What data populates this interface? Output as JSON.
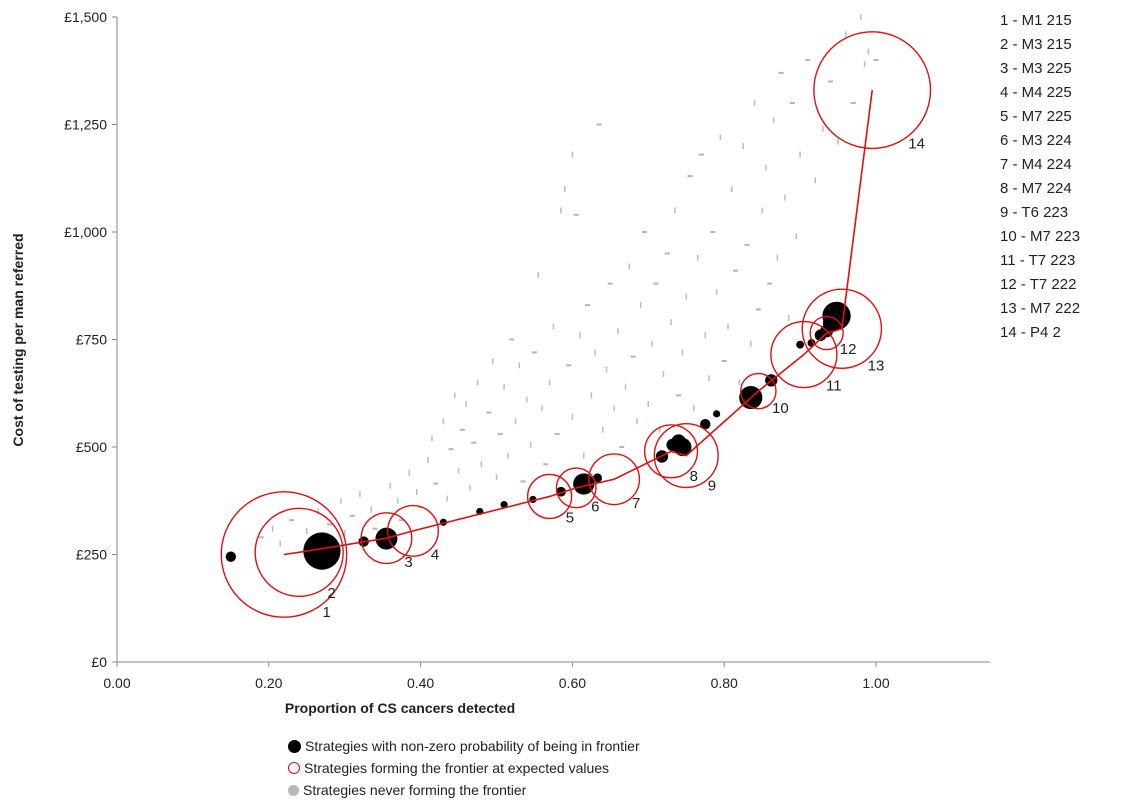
{
  "chart_data": {
    "type": "scatter",
    "xlabel": "Proportion of CS cancers detected",
    "ylabel": "Cost of testing per man referred",
    "xlim": [
      0,
      1.12
    ],
    "ylim": [
      0,
      1500
    ],
    "x_ticks": [
      "0.00",
      "0.20",
      "0.40",
      "0.60",
      "0.80",
      "1.00"
    ],
    "x_tick_values": [
      0,
      0.2,
      0.4,
      0.6,
      0.8,
      1.0
    ],
    "y_ticks": [
      "£0",
      "£250",
      "£500",
      "£750",
      "£1,000",
      "£1,250",
      "£1,500"
    ],
    "y_tick_values": [
      0,
      250,
      500,
      750,
      1000,
      1250,
      1500
    ],
    "grid": false,
    "legend_position": "bottom",
    "legend": [
      {
        "label": "Strategies with non-zero probability of being in frontier",
        "symbol": "black-dot"
      },
      {
        "label": "Strategies forming the frontier at expected values",
        "symbol": "red-circle"
      },
      {
        "label": "Strategies never forming the frontier",
        "symbol": "grey-dot"
      }
    ],
    "frontier_line_color": "#e01010",
    "frontier": [
      {
        "id": "1",
        "name": "M1 215",
        "x": 0.22,
        "y": 250,
        "circle_size": 5.7
      },
      {
        "id": "2",
        "name": "M3 215",
        "x": 0.24,
        "y": 255,
        "circle_size": 4.0
      },
      {
        "id": "3",
        "name": "M3 225",
        "x": 0.355,
        "y": 288,
        "circle_size": 2.3
      },
      {
        "id": "4",
        "name": "M4 225",
        "x": 0.39,
        "y": 305,
        "circle_size": 2.3
      },
      {
        "id": "5",
        "name": "M7 225",
        "x": 0.57,
        "y": 385,
        "circle_size": 2.0
      },
      {
        "id": "6",
        "name": "M3 224",
        "x": 0.605,
        "y": 405,
        "circle_size": 1.8
      },
      {
        "id": "7",
        "name": "M4 224",
        "x": 0.655,
        "y": 425,
        "circle_size": 2.3
      },
      {
        "id": "8",
        "name": "M7 224",
        "x": 0.73,
        "y": 490,
        "circle_size": 2.4
      },
      {
        "id": "9",
        "name": "T6 223",
        "x": 0.75,
        "y": 480,
        "circle_size": 2.9
      },
      {
        "id": "10",
        "name": "M7 223",
        "x": 0.845,
        "y": 630,
        "circle_size": 1.6
      },
      {
        "id": "11",
        "name": "T7 223",
        "x": 0.905,
        "y": 715,
        "circle_size": 3.0
      },
      {
        "id": "12",
        "name": "T7 222",
        "x": 0.935,
        "y": 765,
        "circle_size": 1.5
      },
      {
        "id": "13",
        "name": "M7 222",
        "x": 0.955,
        "y": 775,
        "circle_size": 3.6
      },
      {
        "id": "14",
        "name": "P4 2",
        "x": 0.995,
        "y": 1330,
        "circle_size": 5.3
      }
    ],
    "nonzero_probability_points": [
      {
        "x": 0.15,
        "y": 245,
        "size": 1.0
      },
      {
        "x": 0.27,
        "y": 258,
        "size": 5.2
      },
      {
        "x": 0.325,
        "y": 280,
        "size": 1.0
      },
      {
        "x": 0.355,
        "y": 287,
        "size": 2.8
      },
      {
        "x": 0.43,
        "y": 325,
        "size": 0.5
      },
      {
        "x": 0.478,
        "y": 350,
        "size": 0.5
      },
      {
        "x": 0.51,
        "y": 366,
        "size": 0.5
      },
      {
        "x": 0.548,
        "y": 378,
        "size": 0.5
      },
      {
        "x": 0.585,
        "y": 396,
        "size": 0.9
      },
      {
        "x": 0.615,
        "y": 414,
        "size": 2.7
      },
      {
        "x": 0.633,
        "y": 428,
        "size": 0.8
      },
      {
        "x": 0.718,
        "y": 478,
        "size": 1.3
      },
      {
        "x": 0.732,
        "y": 505,
        "size": 1.3
      },
      {
        "x": 0.74,
        "y": 512,
        "size": 1.7
      },
      {
        "x": 0.745,
        "y": 500,
        "size": 2.2
      },
      {
        "x": 0.775,
        "y": 553,
        "size": 1.0
      },
      {
        "x": 0.79,
        "y": 577,
        "size": 0.5
      },
      {
        "x": 0.835,
        "y": 615,
        "size": 3.0
      },
      {
        "x": 0.862,
        "y": 655,
        "size": 1.3
      },
      {
        "x": 0.9,
        "y": 738,
        "size": 0.6
      },
      {
        "x": 0.915,
        "y": 742,
        "size": 0.6
      },
      {
        "x": 0.927,
        "y": 760,
        "size": 1.2
      },
      {
        "x": 0.935,
        "y": 770,
        "size": 1.4
      },
      {
        "x": 0.942,
        "y": 788,
        "size": 2.2
      },
      {
        "x": 0.948,
        "y": 805,
        "size": 3.8
      }
    ],
    "never_frontier_points": [
      {
        "x": 0.19,
        "y": 290
      },
      {
        "x": 0.205,
        "y": 310
      },
      {
        "x": 0.215,
        "y": 275
      },
      {
        "x": 0.23,
        "y": 330
      },
      {
        "x": 0.25,
        "y": 305
      },
      {
        "x": 0.265,
        "y": 350
      },
      {
        "x": 0.28,
        "y": 320
      },
      {
        "x": 0.295,
        "y": 375
      },
      {
        "x": 0.3,
        "y": 300
      },
      {
        "x": 0.31,
        "y": 340
      },
      {
        "x": 0.32,
        "y": 390
      },
      {
        "x": 0.335,
        "y": 355
      },
      {
        "x": 0.34,
        "y": 310
      },
      {
        "x": 0.36,
        "y": 410
      },
      {
        "x": 0.37,
        "y": 375
      },
      {
        "x": 0.375,
        "y": 330
      },
      {
        "x": 0.385,
        "y": 440
      },
      {
        "x": 0.395,
        "y": 395
      },
      {
        "x": 0.4,
        "y": 360
      },
      {
        "x": 0.41,
        "y": 470
      },
      {
        "x": 0.415,
        "y": 520
      },
      {
        "x": 0.42,
        "y": 415
      },
      {
        "x": 0.43,
        "y": 560
      },
      {
        "x": 0.435,
        "y": 380
      },
      {
        "x": 0.44,
        "y": 495
      },
      {
        "x": 0.445,
        "y": 620
      },
      {
        "x": 0.45,
        "y": 445
      },
      {
        "x": 0.455,
        "y": 540
      },
      {
        "x": 0.46,
        "y": 600
      },
      {
        "x": 0.465,
        "y": 405
      },
      {
        "x": 0.47,
        "y": 510
      },
      {
        "x": 0.475,
        "y": 650
      },
      {
        "x": 0.48,
        "y": 460
      },
      {
        "x": 0.49,
        "y": 580
      },
      {
        "x": 0.495,
        "y": 700
      },
      {
        "x": 0.5,
        "y": 430
      },
      {
        "x": 0.505,
        "y": 530
      },
      {
        "x": 0.51,
        "y": 640
      },
      {
        "x": 0.515,
        "y": 480
      },
      {
        "x": 0.52,
        "y": 750
      },
      {
        "x": 0.525,
        "y": 560
      },
      {
        "x": 0.53,
        "y": 690
      },
      {
        "x": 0.535,
        "y": 420
      },
      {
        "x": 0.54,
        "y": 610
      },
      {
        "x": 0.545,
        "y": 505
      },
      {
        "x": 0.55,
        "y": 720
      },
      {
        "x": 0.555,
        "y": 900
      },
      {
        "x": 0.56,
        "y": 590
      },
      {
        "x": 0.565,
        "y": 460
      },
      {
        "x": 0.57,
        "y": 650
      },
      {
        "x": 0.575,
        "y": 780
      },
      {
        "x": 0.58,
        "y": 530
      },
      {
        "x": 0.585,
        "y": 1050
      },
      {
        "x": 0.59,
        "y": 1100
      },
      {
        "x": 0.595,
        "y": 690
      },
      {
        "x": 0.6,
        "y": 1180
      },
      {
        "x": 0.6,
        "y": 570
      },
      {
        "x": 0.605,
        "y": 1040
      },
      {
        "x": 0.61,
        "y": 760
      },
      {
        "x": 0.615,
        "y": 480
      },
      {
        "x": 0.62,
        "y": 830
      },
      {
        "x": 0.625,
        "y": 620
      },
      {
        "x": 0.63,
        "y": 720
      },
      {
        "x": 0.635,
        "y": 1250
      },
      {
        "x": 0.64,
        "y": 540
      },
      {
        "x": 0.645,
        "y": 680
      },
      {
        "x": 0.65,
        "y": 880
      },
      {
        "x": 0.655,
        "y": 590
      },
      {
        "x": 0.66,
        "y": 770
      },
      {
        "x": 0.665,
        "y": 500
      },
      {
        "x": 0.67,
        "y": 640
      },
      {
        "x": 0.675,
        "y": 920
      },
      {
        "x": 0.68,
        "y": 710
      },
      {
        "x": 0.685,
        "y": 560
      },
      {
        "x": 0.69,
        "y": 830
      },
      {
        "x": 0.695,
        "y": 1000
      },
      {
        "x": 0.7,
        "y": 600
      },
      {
        "x": 0.705,
        "y": 740
      },
      {
        "x": 0.71,
        "y": 880
      },
      {
        "x": 0.715,
        "y": 540
      },
      {
        "x": 0.72,
        "y": 670
      },
      {
        "x": 0.725,
        "y": 950
      },
      {
        "x": 0.73,
        "y": 790
      },
      {
        "x": 0.735,
        "y": 1050
      },
      {
        "x": 0.74,
        "y": 620
      },
      {
        "x": 0.745,
        "y": 720
      },
      {
        "x": 0.75,
        "y": 850
      },
      {
        "x": 0.755,
        "y": 1130
      },
      {
        "x": 0.76,
        "y": 590
      },
      {
        "x": 0.765,
        "y": 940
      },
      {
        "x": 0.77,
        "y": 1180
      },
      {
        "x": 0.775,
        "y": 760
      },
      {
        "x": 0.78,
        "y": 660
      },
      {
        "x": 0.785,
        "y": 1000
      },
      {
        "x": 0.79,
        "y": 860
      },
      {
        "x": 0.795,
        "y": 1220
      },
      {
        "x": 0.8,
        "y": 700
      },
      {
        "x": 0.805,
        "y": 780
      },
      {
        "x": 0.81,
        "y": 1100
      },
      {
        "x": 0.815,
        "y": 910
      },
      {
        "x": 0.82,
        "y": 650
      },
      {
        "x": 0.825,
        "y": 1200
      },
      {
        "x": 0.83,
        "y": 970
      },
      {
        "x": 0.835,
        "y": 740
      },
      {
        "x": 0.84,
        "y": 1300
      },
      {
        "x": 0.845,
        "y": 820
      },
      {
        "x": 0.85,
        "y": 1050
      },
      {
        "x": 0.855,
        "y": 1150
      },
      {
        "x": 0.86,
        "y": 880
      },
      {
        "x": 0.865,
        "y": 1260
      },
      {
        "x": 0.87,
        "y": 940
      },
      {
        "x": 0.875,
        "y": 1370
      },
      {
        "x": 0.88,
        "y": 1080
      },
      {
        "x": 0.885,
        "y": 800
      },
      {
        "x": 0.89,
        "y": 1300
      },
      {
        "x": 0.895,
        "y": 990
      },
      {
        "x": 0.9,
        "y": 1180
      },
      {
        "x": 0.91,
        "y": 1400
      },
      {
        "x": 0.92,
        "y": 1120
      },
      {
        "x": 0.93,
        "y": 1240
      },
      {
        "x": 0.94,
        "y": 1350
      },
      {
        "x": 0.95,
        "y": 1210
      },
      {
        "x": 0.96,
        "y": 1460
      },
      {
        "x": 0.97,
        "y": 1300
      },
      {
        "x": 0.98,
        "y": 1500
      },
      {
        "x": 0.99,
        "y": 1420
      },
      {
        "x": 1.0,
        "y": 1400
      },
      {
        "x": 0.985,
        "y": 1390
      }
    ]
  }
}
